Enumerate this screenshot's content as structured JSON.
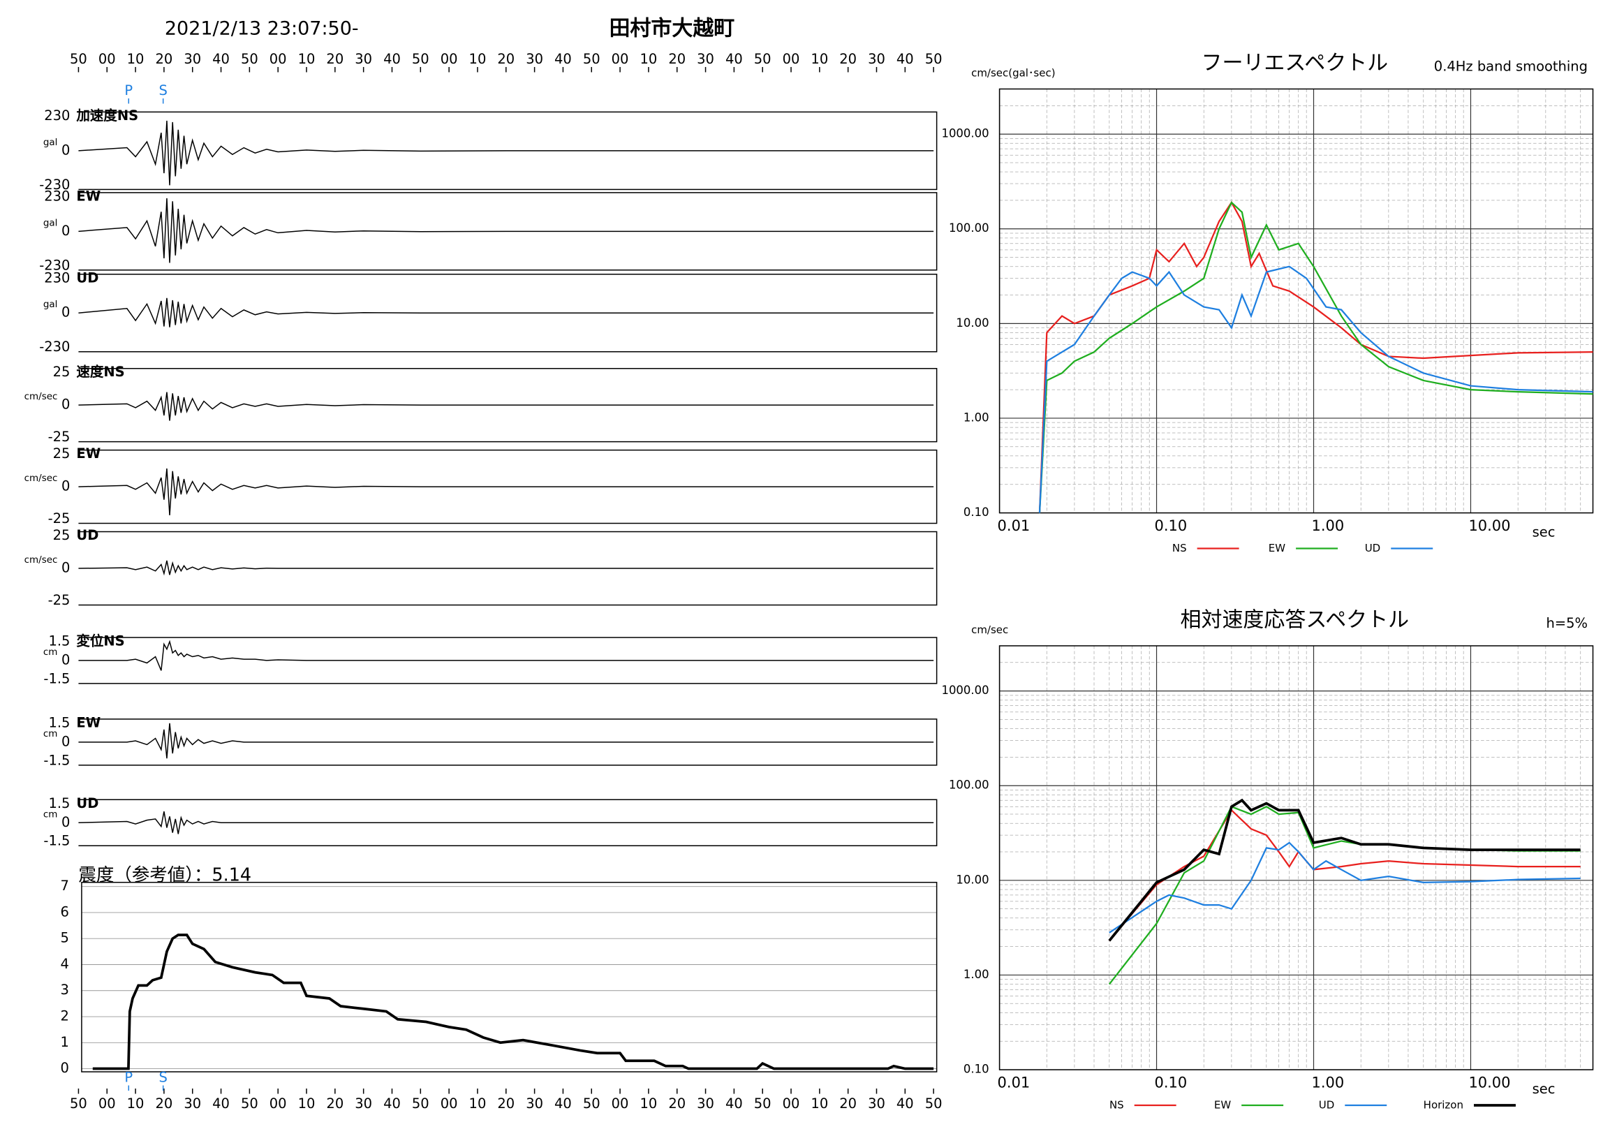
{
  "chart_data": [
    {
      "type": "waveform",
      "title": "2021/2/13 23:07:50-",
      "subtitle": "田村市大越町",
      "xlim": [
        0,
        300
      ],
      "xticks": [
        {
          "value": 0,
          "label": "50"
        },
        {
          "value": 10,
          "label": "00"
        },
        {
          "value": 20,
          "label": "10"
        },
        {
          "value": 30,
          "label": "20"
        },
        {
          "value": 40,
          "label": "30"
        },
        {
          "value": 50,
          "label": "40"
        },
        {
          "value": 60,
          "label": "50"
        },
        {
          "value": 70,
          "label": "00"
        },
        {
          "value": 80,
          "label": "10"
        },
        {
          "value": 90,
          "label": "20"
        },
        {
          "value": 100,
          "label": "30"
        },
        {
          "value": 110,
          "label": "40"
        },
        {
          "value": 120,
          "label": "50"
        },
        {
          "value": 130,
          "label": "00"
        },
        {
          "value": 140,
          "label": "10"
        },
        {
          "value": 150,
          "label": "20"
        },
        {
          "value": 160,
          "label": "30"
        },
        {
          "value": 170,
          "label": "40"
        },
        {
          "value": 180,
          "label": "50"
        },
        {
          "value": 190,
          "label": "00"
        },
        {
          "value": 200,
          "label": "10"
        },
        {
          "value": 210,
          "label": "20"
        },
        {
          "value": 220,
          "label": "30"
        },
        {
          "value": 230,
          "label": "40"
        },
        {
          "value": 240,
          "label": "50"
        },
        {
          "value": 250,
          "label": "00"
        },
        {
          "value": 260,
          "label": "10"
        },
        {
          "value": 270,
          "label": "20"
        },
        {
          "value": 280,
          "label": "30"
        },
        {
          "value": 290,
          "label": "40"
        },
        {
          "value": 300,
          "label": "50"
        }
      ],
      "markers": [
        {
          "label": "P",
          "value": 17.6
        },
        {
          "label": "S",
          "value": 29.7
        }
      ],
      "x": [
        0,
        17,
        20,
        24,
        27,
        29,
        30,
        31,
        32,
        33,
        34,
        35,
        36,
        37,
        38,
        40,
        42,
        44,
        47,
        50,
        54,
        58,
        62,
        66,
        70,
        80,
        90,
        100,
        120,
        150,
        200,
        300
      ],
      "series": [
        {
          "name": "加速度NS",
          "unit": "gal",
          "ylim": [
            -230,
            230
          ],
          "yticks": [
            230,
            0,
            -230
          ],
          "color": "#000000",
          "values": [
            0,
            20,
            -40,
            60,
            -90,
            120,
            -150,
            200,
            -230,
            190,
            -170,
            140,
            -120,
            100,
            -90,
            70,
            -60,
            50,
            -40,
            30,
            -25,
            20,
            -15,
            10,
            -8,
            5,
            -4,
            3,
            -2,
            0,
            0,
            0
          ]
        },
        {
          "name": "EW",
          "unit": "gal",
          "ylim": [
            -230,
            230
          ],
          "yticks": [
            230,
            0,
            -230
          ],
          "color": "#000000",
          "values": [
            0,
            25,
            -50,
            70,
            -100,
            130,
            -180,
            220,
            -210,
            200,
            -160,
            150,
            -120,
            110,
            -80,
            70,
            -60,
            50,
            -45,
            35,
            -30,
            25,
            -18,
            12,
            -10,
            6,
            -4,
            3,
            -2,
            0,
            0,
            0
          ]
        },
        {
          "name": "UD",
          "unit": "gal",
          "ylim": [
            -230,
            230
          ],
          "yticks": [
            230,
            0,
            -230
          ],
          "color": "#000000",
          "values": [
            0,
            30,
            -50,
            60,
            -70,
            80,
            -90,
            100,
            -95,
            85,
            -80,
            75,
            -70,
            60,
            -55,
            50,
            -45,
            40,
            -35,
            30,
            -25,
            20,
            -12,
            8,
            -6,
            4,
            -3,
            2,
            0,
            0,
            0,
            0
          ]
        },
        {
          "name": "速度NS",
          "unit": "cm/sec",
          "ylim": [
            -25,
            25
          ],
          "yticks": [
            25,
            0,
            -25
          ],
          "color": "#000000",
          "values": [
            0,
            1,
            -2,
            3,
            -4,
            6,
            -8,
            10,
            -12,
            9,
            -8,
            7,
            -6,
            6,
            -5,
            5,
            -4,
            3,
            -3,
            2,
            -2,
            1,
            -1,
            1,
            -1,
            0.5,
            -0.5,
            0.3,
            0,
            0,
            0,
            0
          ]
        },
        {
          "name": "EW",
          "unit": "cm/sec",
          "ylim": [
            -25,
            25
          ],
          "yticks": [
            25,
            0,
            -25
          ],
          "color": "#000000",
          "values": [
            0,
            1,
            -2,
            3,
            -5,
            7,
            -10,
            14,
            -22,
            12,
            -9,
            8,
            -6,
            6,
            -5,
            4,
            -4,
            3,
            -3,
            2,
            -2,
            1,
            -1,
            1,
            -1,
            0.5,
            -0.5,
            0.3,
            0,
            0,
            0,
            0
          ]
        },
        {
          "name": "UD",
          "unit": "cm/sec",
          "ylim": [
            -25,
            25
          ],
          "yticks": [
            25,
            0,
            -25
          ],
          "color": "#000000",
          "values": [
            0,
            0.5,
            -1,
            1,
            -2,
            3,
            -4,
            6,
            -5,
            4,
            -3,
            2,
            -2,
            2,
            -1,
            1,
            -1,
            1,
            -1,
            0.5,
            -0.5,
            0.3,
            -0.3,
            0.2,
            0,
            0,
            0,
            0,
            0,
            0,
            0,
            0
          ]
        },
        {
          "name": "変位NS",
          "unit": "cm",
          "ylim": [
            -1.5,
            1.5
          ],
          "yticks": [
            1.5,
            0,
            -1.5
          ],
          "color": "#000000",
          "values": [
            0,
            0,
            0.1,
            -0.2,
            0.3,
            -0.8,
            1.3,
            0.9,
            1.5,
            0.6,
            0.8,
            0.4,
            0.6,
            0.3,
            0.5,
            0.3,
            0.4,
            0.2,
            0.3,
            0.1,
            0.2,
            0.1,
            0.1,
            0,
            0.05,
            0,
            0,
            0,
            0,
            0,
            0,
            0
          ]
        },
        {
          "name": "EW",
          "unit": "cm",
          "ylim": [
            -1.5,
            1.5
          ],
          "yticks": [
            1.5,
            0,
            -1.5
          ],
          "color": "#000000",
          "values": [
            0,
            0,
            0.1,
            -0.2,
            0.3,
            -0.6,
            1.0,
            -1.3,
            1.5,
            -0.9,
            0.8,
            -0.5,
            0.4,
            -0.3,
            0.3,
            -0.2,
            0.2,
            -0.1,
            0.1,
            -0.1,
            0.1,
            0,
            0,
            0,
            0,
            0,
            0,
            0,
            0,
            0,
            0,
            0
          ]
        },
        {
          "name": "UD",
          "unit": "cm",
          "ylim": [
            -1.5,
            1.5
          ],
          "yticks": [
            1.5,
            0,
            -1.5
          ],
          "color": "#000000",
          "values": [
            0,
            0.1,
            -0.1,
            0.2,
            0.3,
            -0.3,
            0.9,
            -0.4,
            0.5,
            -0.8,
            0.3,
            -0.9,
            0.4,
            -0.2,
            0.2,
            -0.1,
            0.1,
            -0.1,
            0.1,
            0,
            0,
            0,
            0,
            0,
            0,
            0,
            0,
            0,
            0,
            0,
            0,
            0
          ]
        }
      ]
    },
    {
      "type": "step",
      "title": "震度（参考値）：5.14",
      "color": "#000000",
      "xlim": [
        0,
        300
      ],
      "ylim": [
        0,
        7
      ],
      "yticks": [
        0,
        1,
        2,
        3,
        4,
        5,
        6,
        7
      ],
      "grid": true,
      "x": [
        5,
        17.5,
        18,
        19,
        21,
        24,
        26,
        29,
        31,
        33,
        35,
        38,
        40,
        44,
        48,
        54,
        62,
        68,
        72,
        78,
        80,
        88,
        92,
        100,
        108,
        112,
        122,
        130,
        136,
        142,
        148,
        156,
        166,
        176,
        182,
        190,
        192,
        202,
        206,
        212,
        214,
        238,
        240,
        244,
        284,
        286,
        290,
        300
      ],
      "values": [
        0,
        0,
        2.2,
        2.7,
        3.2,
        3.2,
        3.4,
        3.5,
        4.5,
        5.0,
        5.14,
        5.14,
        4.8,
        4.6,
        4.1,
        3.9,
        3.7,
        3.6,
        3.3,
        3.3,
        2.8,
        2.7,
        2.4,
        2.3,
        2.2,
        1.9,
        1.8,
        1.6,
        1.5,
        1.2,
        1.0,
        1.1,
        0.9,
        0.7,
        0.6,
        0.6,
        0.3,
        0.3,
        0.1,
        0.1,
        0,
        0,
        0.2,
        0,
        0,
        0.1,
        0,
        0
      ]
    },
    {
      "type": "loglog",
      "title": "フーリエスペクトル",
      "subtitle": "0.4Hz band smoothing",
      "y_label": "cm/sec(gal･sec)",
      "x_label": "sec",
      "grid": true,
      "xlim": [
        0.01,
        60
      ],
      "ylim": [
        0.1,
        3000
      ],
      "xticks": [
        {
          "value": 0.01,
          "label": "0.01"
        },
        {
          "value": 0.1,
          "label": "0.10"
        },
        {
          "value": 1,
          "label": "1.00"
        },
        {
          "value": 10,
          "label": "10.00"
        }
      ],
      "yticks": [
        {
          "value": 0.1,
          "label": "0.10"
        },
        {
          "value": 1,
          "label": "1.00"
        },
        {
          "value": 10,
          "label": "10.00"
        },
        {
          "value": 100,
          "label": "100.00"
        },
        {
          "value": 1000,
          "label": "1000.00"
        }
      ],
      "series": [
        {
          "name": "NS",
          "color": "#e8201e",
          "x": [
            0.018,
            0.02,
            0.025,
            0.03,
            0.04,
            0.05,
            0.07,
            0.09,
            0.1,
            0.12,
            0.15,
            0.18,
            0.2,
            0.25,
            0.3,
            0.35,
            0.4,
            0.45,
            0.55,
            0.7,
            1,
            1.5,
            2,
            3,
            5,
            10,
            20,
            60
          ],
          "values": [
            0.1,
            8,
            12,
            10,
            12,
            20,
            25,
            30,
            60,
            45,
            70,
            40,
            50,
            120,
            190,
            120,
            40,
            55,
            25,
            22,
            15,
            9,
            6,
            4.5,
            4.3,
            4.6,
            4.9,
            5
          ]
        },
        {
          "name": "EW",
          "color": "#1fae1f",
          "x": [
            0.018,
            0.02,
            0.025,
            0.03,
            0.04,
            0.05,
            0.07,
            0.1,
            0.15,
            0.2,
            0.25,
            0.3,
            0.35,
            0.4,
            0.5,
            0.6,
            0.8,
            1,
            1.5,
            2,
            3,
            5,
            10,
            20,
            60
          ],
          "values": [
            0.1,
            2.5,
            3,
            4,
            5,
            7,
            10,
            15,
            22,
            30,
            100,
            190,
            150,
            50,
            110,
            60,
            70,
            40,
            12,
            6,
            3.5,
            2.5,
            2,
            1.9,
            1.8
          ]
        },
        {
          "name": "UD",
          "color": "#1e7fe0",
          "x": [
            0.018,
            0.02,
            0.03,
            0.04,
            0.05,
            0.06,
            0.07,
            0.09,
            0.1,
            0.12,
            0.15,
            0.2,
            0.25,
            0.3,
            0.35,
            0.4,
            0.5,
            0.7,
            0.9,
            1.2,
            1.5,
            2,
            3,
            5,
            10,
            20,
            60
          ],
          "values": [
            0.1,
            4,
            6,
            12,
            20,
            30,
            35,
            30,
            25,
            35,
            20,
            15,
            14,
            9,
            20,
            12,
            35,
            40,
            30,
            15,
            14,
            8,
            4.5,
            3,
            2.2,
            2,
            1.9
          ]
        }
      ]
    },
    {
      "type": "loglog",
      "title": "相対速度応答スペクトル",
      "subtitle": "h=5%",
      "y_label": "cm/sec",
      "x_label": "sec",
      "grid": true,
      "xlim": [
        0.01,
        60
      ],
      "ylim": [
        0.1,
        3000
      ],
      "xticks": [
        {
          "value": 0.01,
          "label": "0.01"
        },
        {
          "value": 0.1,
          "label": "0.10"
        },
        {
          "value": 1,
          "label": "1.00"
        },
        {
          "value": 10,
          "label": "10.00"
        }
      ],
      "yticks": [
        {
          "value": 0.1,
          "label": "0.10"
        },
        {
          "value": 1,
          "label": "1.00"
        },
        {
          "value": 10,
          "label": "10.00"
        },
        {
          "value": 100,
          "label": "100.00"
        },
        {
          "value": 1000,
          "label": "1000.00"
        }
      ],
      "series": [
        {
          "name": "NS",
          "color": "#e8201e",
          "x": [
            0.05,
            0.1,
            0.15,
            0.2,
            0.3,
            0.4,
            0.5,
            0.6,
            0.7,
            0.8,
            1,
            1.5,
            2,
            3,
            5,
            10,
            20,
            50
          ],
          "values": [
            2.3,
            9,
            14,
            18,
            55,
            35,
            30,
            20,
            14,
            20,
            13,
            14,
            15,
            16,
            15,
            14.5,
            14,
            14
          ]
        },
        {
          "name": "EW",
          "color": "#1fae1f",
          "x": [
            0.05,
            0.1,
            0.15,
            0.2,
            0.3,
            0.4,
            0.5,
            0.6,
            0.8,
            1,
            1.5,
            2,
            3,
            5,
            10,
            20,
            50
          ],
          "values": [
            0.8,
            3.5,
            12,
            16,
            60,
            50,
            60,
            50,
            52,
            22,
            26,
            24,
            24,
            22,
            21,
            20.5,
            20.5
          ]
        },
        {
          "name": "UD",
          "color": "#1e7fe0",
          "x": [
            0.05,
            0.1,
            0.12,
            0.15,
            0.2,
            0.25,
            0.3,
            0.4,
            0.5,
            0.6,
            0.7,
            0.8,
            1,
            1.2,
            1.5,
            2,
            3,
            5,
            10,
            20,
            50
          ],
          "values": [
            2.8,
            6,
            7,
            6.5,
            5.5,
            5.5,
            5,
            10,
            22,
            21,
            25,
            20,
            13,
            16,
            13,
            10,
            11,
            9.5,
            9.7,
            10.2,
            10.5
          ]
        },
        {
          "name": "Horizon",
          "color": "#000000",
          "x": [
            0.05,
            0.1,
            0.15,
            0.2,
            0.25,
            0.3,
            0.35,
            0.4,
            0.5,
            0.6,
            0.8,
            1,
            1.5,
            2,
            3,
            5,
            10,
            20,
            50
          ],
          "values": [
            2.3,
            9.5,
            13,
            21,
            19,
            60,
            70,
            55,
            65,
            55,
            55,
            25,
            28,
            24,
            24,
            22,
            21,
            21,
            21
          ]
        }
      ]
    }
  ]
}
